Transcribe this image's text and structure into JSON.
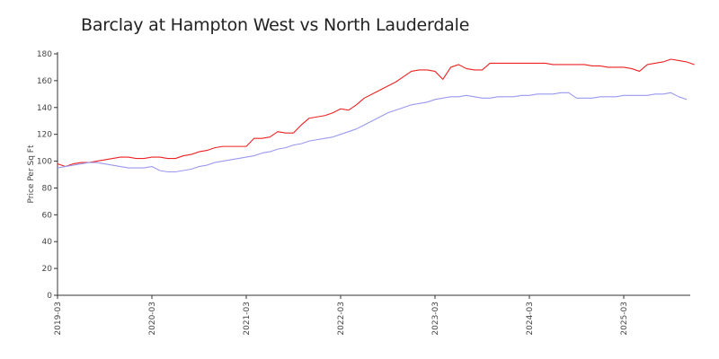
{
  "chart_data": {
    "type": "line",
    "title": "Barclay at Hampton West vs North Lauderdale",
    "xlabel": "",
    "ylabel": "Price Per Sq Ft",
    "ylim": [
      0,
      180
    ],
    "yticks": [
      0,
      20,
      40,
      60,
      80,
      100,
      120,
      140,
      160,
      180
    ],
    "xticks": [
      "2019-03",
      "2020-03",
      "2021-03",
      "2022-03",
      "2023-03",
      "2024-03",
      "2025-03"
    ],
    "x_start": "2019-03",
    "grid": false,
    "series": [
      {
        "color": "#ee2222",
        "values": [
          98,
          96,
          98,
          99,
          99,
          100,
          101,
          102,
          103,
          103,
          102,
          102,
          103,
          103,
          102,
          102,
          104,
          105,
          107,
          108,
          110,
          111,
          111,
          111,
          111,
          117,
          117,
          118,
          122,
          121,
          121,
          127,
          132,
          133,
          134,
          136,
          139,
          138,
          142,
          147,
          150,
          153,
          156,
          159,
          163,
          167,
          168,
          168,
          167,
          161,
          170,
          172,
          169,
          168,
          168,
          173,
          173,
          173,
          173,
          173,
          173,
          173,
          173,
          172,
          172,
          172,
          172,
          172,
          171,
          171,
          170,
          170,
          170,
          169,
          167,
          172,
          173,
          174,
          176,
          175,
          174,
          172
        ]
      },
      {
        "color": "#9999ee",
        "values": [
          95,
          96,
          97,
          98,
          99,
          99,
          98,
          97,
          96,
          95,
          95,
          95,
          96,
          93,
          92,
          92,
          93,
          94,
          96,
          97,
          99,
          100,
          101,
          102,
          103,
          104,
          106,
          107,
          109,
          110,
          112,
          113,
          115,
          116,
          117,
          118,
          120,
          122,
          124,
          127,
          130,
          133,
          136,
          138,
          140,
          142,
          143,
          144,
          146,
          147,
          148,
          148,
          149,
          148,
          147,
          147,
          148,
          148,
          148,
          149,
          149,
          150,
          150,
          150,
          151,
          151,
          147,
          147,
          147,
          148,
          148,
          148,
          149,
          149,
          149,
          149,
          150,
          150,
          151,
          148,
          146
        ]
      }
    ]
  }
}
